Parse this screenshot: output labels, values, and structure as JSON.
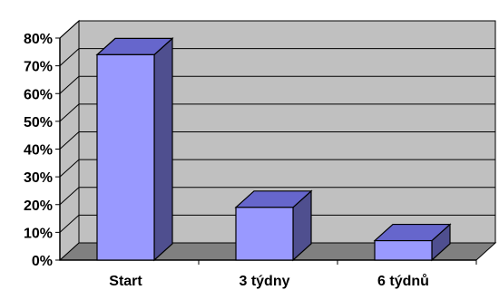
{
  "chart_data": {
    "type": "bar",
    "style": "3d-column",
    "categories": [
      "Start",
      "3 týdny",
      "6 týdnů"
    ],
    "values": [
      74,
      19,
      7
    ],
    "y_ticks": [
      "0%",
      "10%",
      "20%",
      "30%",
      "40%",
      "50%",
      "60%",
      "70%",
      "80%"
    ],
    "ylim": [
      0,
      80
    ],
    "grid": true,
    "legend": "none",
    "colors": {
      "bar_front": "#9999ff",
      "bar_top": "#6666cc",
      "bar_side": "#4f4f8f",
      "wall": "#c0c0c0",
      "floor": "#808080",
      "gridline": "#000000"
    }
  }
}
